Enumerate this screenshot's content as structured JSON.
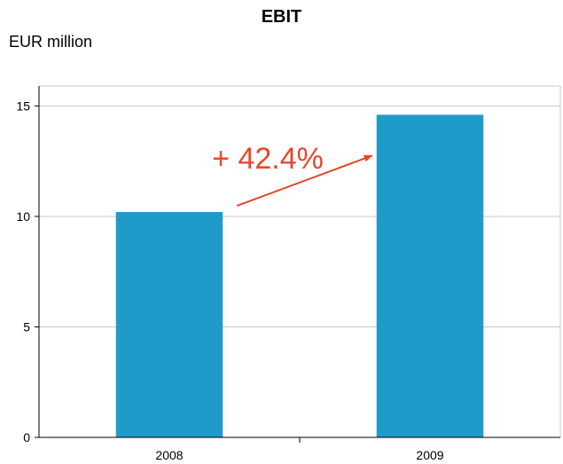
{
  "chart_data": {
    "type": "bar",
    "title": "EBIT",
    "subtitle": "EUR million",
    "categories": [
      "2008",
      "2009"
    ],
    "values": [
      10.2,
      14.6
    ],
    "yticks": [
      0,
      5,
      10,
      15
    ],
    "ylim": [
      0,
      15.9
    ],
    "grid": true,
    "bar_color": "#1f9bc9",
    "annotation": {
      "label": "+ 42.4%",
      "color": "#e8462e",
      "from": "2008",
      "to": "2009"
    }
  }
}
